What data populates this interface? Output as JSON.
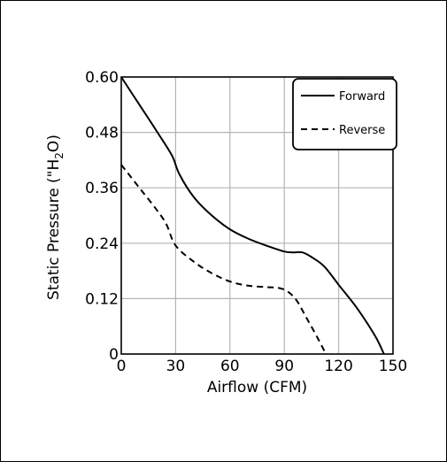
{
  "chart_data": {
    "type": "line",
    "xlabel": "Airflow (CFM)",
    "ylabel_main": "Static Pressure (\"H",
    "ylabel_sub": "2",
    "ylabel_end": "O)",
    "xlim": [
      0,
      150
    ],
    "ylim": [
      0,
      0.6
    ],
    "x_ticks": [
      "0",
      "30",
      "60",
      "90",
      "120",
      "150"
    ],
    "y_ticks": [
      "0",
      "0.12",
      "0.24",
      "0.36",
      "0.48",
      "0.60"
    ],
    "grid": true,
    "legend_position": "top-right",
    "series": [
      {
        "name": "Forward",
        "style": "solid",
        "x": [
          0,
          10,
          20,
          28,
          32,
          40,
          50,
          60,
          70,
          80,
          90,
          95,
          100,
          105,
          112,
          120,
          130,
          140,
          145
        ],
        "y": [
          0.6,
          0.54,
          0.48,
          0.43,
          0.39,
          0.34,
          0.3,
          0.27,
          0.25,
          0.235,
          0.222,
          0.22,
          0.22,
          0.21,
          0.19,
          0.15,
          0.1,
          0.04,
          0.0
        ]
      },
      {
        "name": "Reverse",
        "style": "dashed",
        "x": [
          0,
          10,
          20,
          25,
          30,
          40,
          50,
          60,
          70,
          80,
          87,
          92,
          97,
          102,
          107,
          113
        ],
        "y": [
          0.41,
          0.36,
          0.31,
          0.28,
          0.235,
          0.2,
          0.175,
          0.157,
          0.148,
          0.145,
          0.143,
          0.135,
          0.115,
          0.08,
          0.045,
          0.0
        ]
      }
    ]
  }
}
